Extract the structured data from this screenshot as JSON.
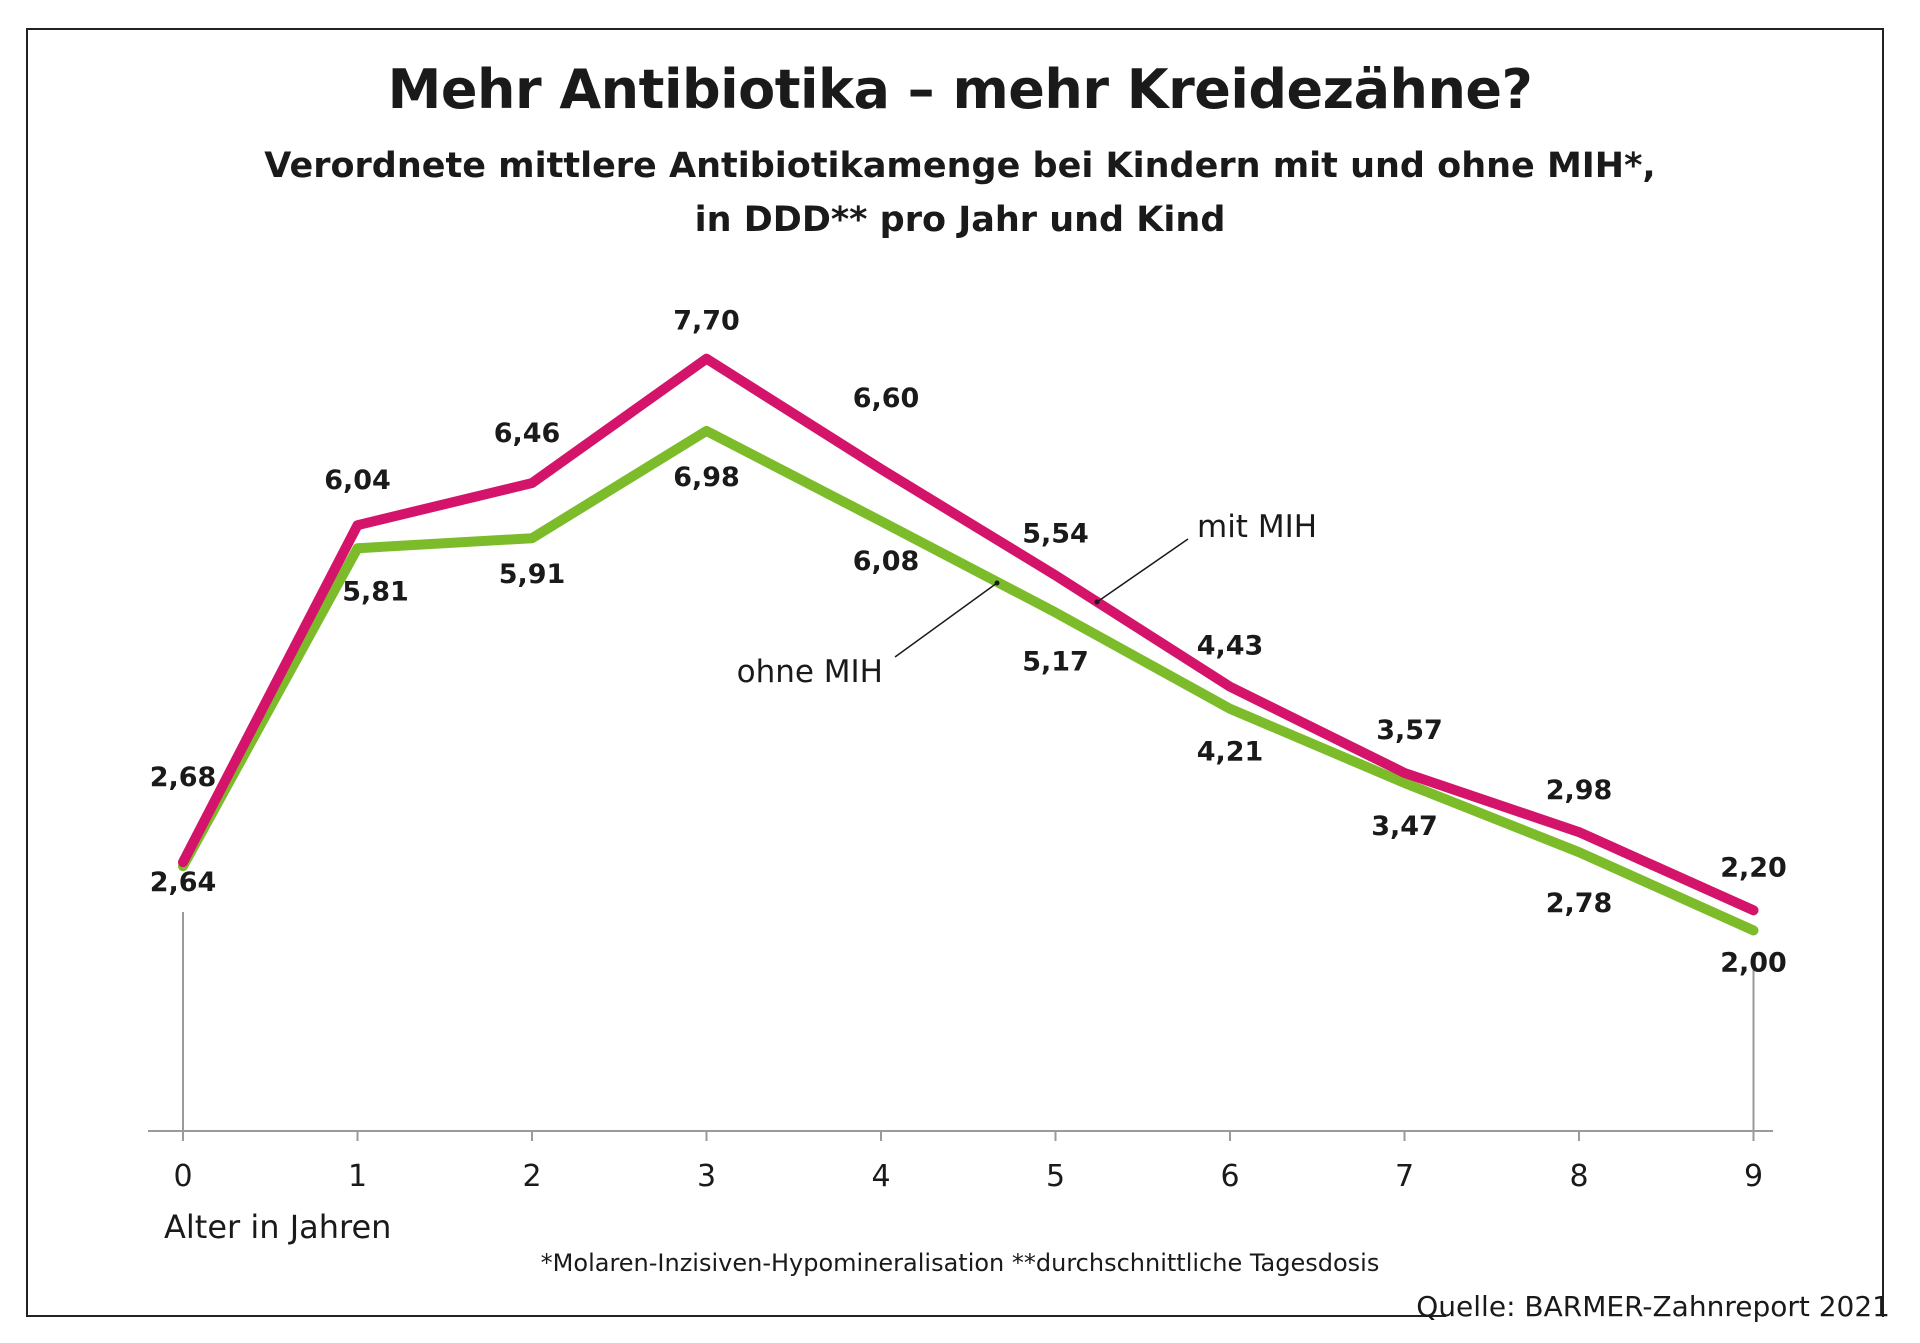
{
  "title": "Mehr Antibiotika – mehr Kreidezähne?",
  "subtitle_line1": "Verordnete mittlere Antibiotikamenge bei Kindern mit und ohne MIH*,",
  "subtitle_line2": "in DDD** pro Jahr und Kind",
  "footnote": "*Molaren-Inzisiven-Hypomineralisation   **durchschnittliche Tagesdosis",
  "source": "Quelle: BARMER-Zahnreport 2021",
  "chart_data": {
    "type": "line",
    "xlabel": "Alter in Jahren",
    "ylabel": "",
    "x": [
      0,
      1,
      2,
      3,
      4,
      5,
      6,
      7,
      8,
      9
    ],
    "x_tick_labels": [
      "0",
      "1",
      "2",
      "3",
      "4",
      "5",
      "6",
      "7",
      "8",
      "9"
    ],
    "ylim": [
      0,
      8.5
    ],
    "grid": false,
    "series": [
      {
        "name": "mit MIH",
        "color": "#d4146a",
        "values": [
          2.68,
          6.04,
          6.46,
          7.7,
          6.6,
          5.54,
          4.43,
          3.57,
          2.98,
          2.2
        ],
        "labels": [
          "2,68",
          "6,04",
          "6,46",
          "7,70",
          "6,60",
          "5,54",
          "4,43",
          "3,57",
          "2,98",
          "2,20"
        ]
      },
      {
        "name": "ohne MIH",
        "color": "#7cbc2a",
        "values": [
          2.64,
          5.81,
          5.91,
          6.98,
          6.08,
          5.17,
          4.21,
          3.47,
          2.78,
          2.0
        ],
        "labels": [
          "2,64",
          "5,81",
          "5,91",
          "6,98",
          "6,08",
          "5,17",
          "4,21",
          "3,47",
          "2,78",
          "2,00"
        ]
      }
    ]
  }
}
